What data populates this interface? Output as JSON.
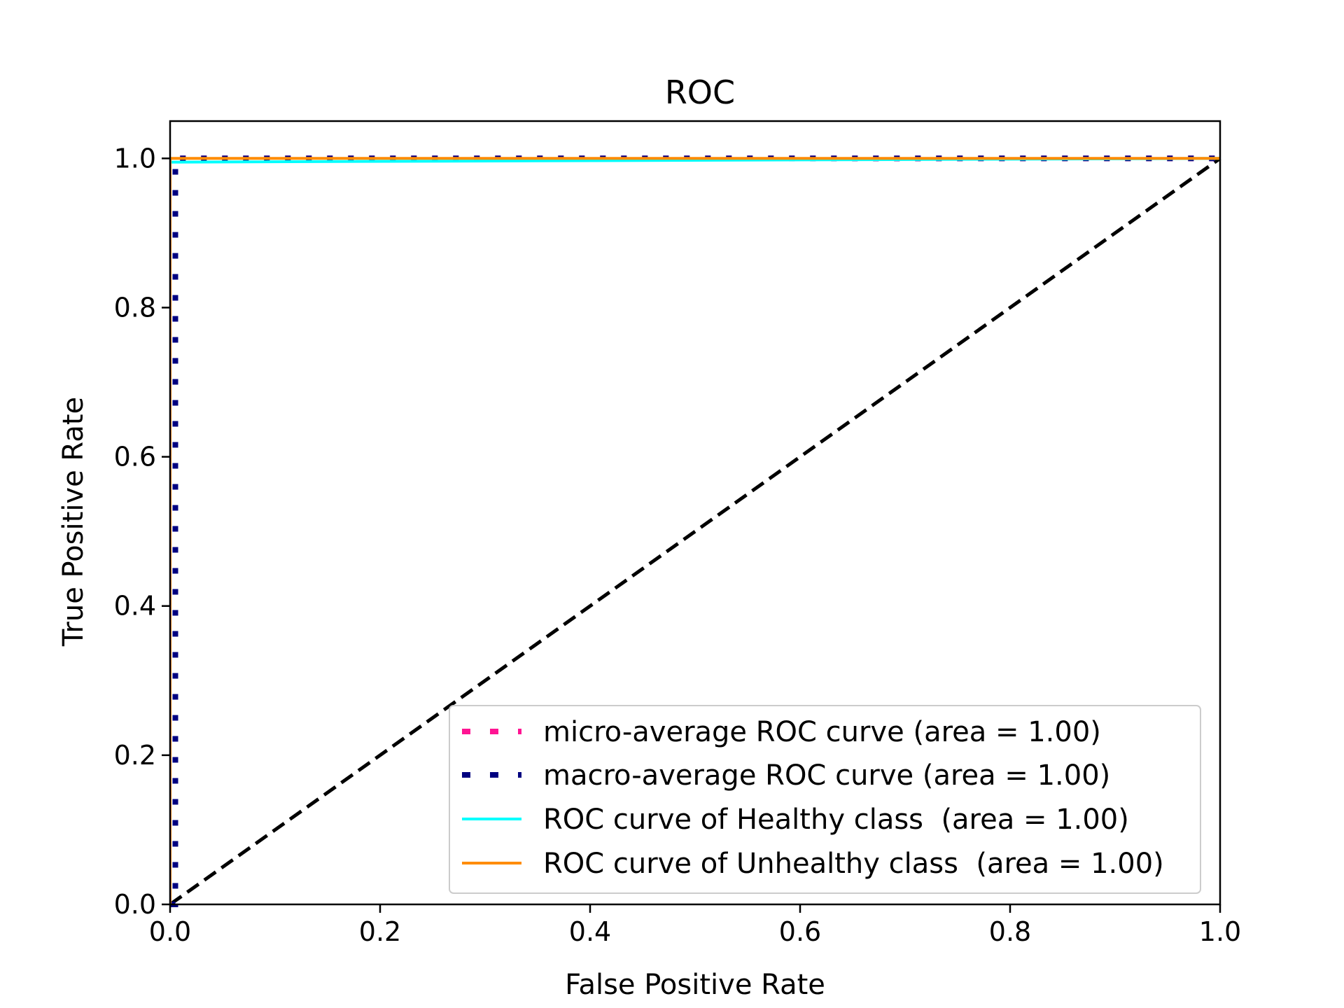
{
  "chart_data": {
    "type": "line",
    "title": "ROC",
    "xlabel": "False Positive Rate",
    "ylabel": "True Positive Rate",
    "xlim": [
      0.0,
      1.0
    ],
    "ylim": [
      0.0,
      1.05
    ],
    "xticks": [
      "0.0",
      "0.2",
      "0.4",
      "0.6",
      "0.8",
      "1.0"
    ],
    "yticks": [
      "0.0",
      "0.2",
      "0.4",
      "0.6",
      "0.8",
      "1.0"
    ],
    "xtick_values": [
      0.0,
      0.2,
      0.4,
      0.6,
      0.8,
      1.0
    ],
    "ytick_values": [
      0.0,
      0.2,
      0.4,
      0.6,
      0.8,
      1.0
    ],
    "grid": false,
    "legend_position": "lower-right",
    "series": [
      {
        "name": "micro-average ROC curve (area = 1.00)",
        "color": "#ff1493",
        "style": "dotted",
        "x": [
          0.0,
          0.005,
          0.005,
          1.0
        ],
        "y": [
          0.0,
          0.0,
          1.0,
          1.0
        ]
      },
      {
        "name": "macro-average ROC curve (area = 1.00)",
        "color": "#000080",
        "style": "dotted",
        "x": [
          0.0,
          0.005,
          0.005,
          1.0
        ],
        "y": [
          0.0,
          0.0,
          1.0,
          1.0
        ]
      },
      {
        "name": "ROC curve of Healthy class  (area = 1.00)",
        "color": "#00ffff",
        "style": "solid",
        "x": [
          0.0,
          0.0,
          0.003,
          1.0
        ],
        "y": [
          0.0,
          0.995,
          0.995,
          1.0
        ]
      },
      {
        "name": "ROC curve of Unhealthy class  (area = 1.00)",
        "color": "#ff8c00",
        "style": "solid",
        "x": [
          0.0,
          0.0,
          0.003,
          1.0
        ],
        "y": [
          0.0,
          1.0,
          1.0,
          1.0
        ]
      }
    ],
    "reference_line": {
      "color": "#000000",
      "style": "dashed",
      "x": [
        0.0,
        1.0
      ],
      "y": [
        0.0,
        1.0
      ]
    }
  }
}
